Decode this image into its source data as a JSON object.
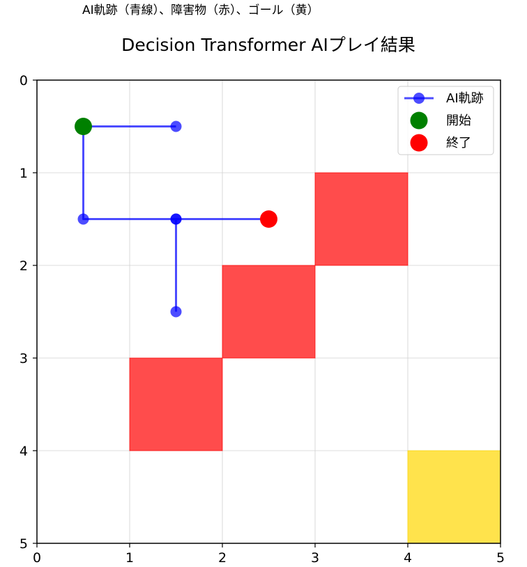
{
  "header_note": "AI軌跡（青線）、障害物（赤）、ゴール（黄）",
  "chart_data": {
    "type": "scatter",
    "title": "Decision Transformer AIプレイ結果",
    "xlabel": "",
    "ylabel": "",
    "xlim": [
      0,
      5
    ],
    "ylim": [
      5,
      0
    ],
    "y_inverted": true,
    "x_ticks": [
      "0",
      "1",
      "2",
      "3",
      "4",
      "5"
    ],
    "y_ticks": [
      "0",
      "1",
      "2",
      "3",
      "4",
      "5"
    ],
    "grid": true,
    "legend_position": "top-right",
    "colors": {
      "trajectory": "#0000ff",
      "start": "#008000",
      "end": "#ff0000",
      "obstacle": "#ff0000",
      "goal": "#ffd700",
      "grid": "#d0d0d0"
    },
    "trajectory": {
      "name": "AI軌跡",
      "points": [
        [
          1.5,
          0.5
        ],
        [
          0.5,
          0.5
        ],
        [
          0.5,
          1.5
        ],
        [
          1.5,
          1.5
        ],
        [
          2.5,
          1.5
        ],
        [
          1.5,
          1.5
        ],
        [
          1.5,
          2.5
        ]
      ]
    },
    "start": {
      "name": "開始",
      "x": 0.5,
      "y": 0.5
    },
    "end": {
      "name": "終了",
      "x": 2.5,
      "y": 1.5
    },
    "obstacles": [
      {
        "x": 1,
        "y": 3,
        "w": 1,
        "h": 1
      },
      {
        "x": 2,
        "y": 2,
        "w": 1,
        "h": 1
      },
      {
        "x": 3,
        "y": 1,
        "w": 1,
        "h": 1
      }
    ],
    "goal": {
      "x": 4,
      "y": 4,
      "w": 1,
      "h": 1
    }
  }
}
